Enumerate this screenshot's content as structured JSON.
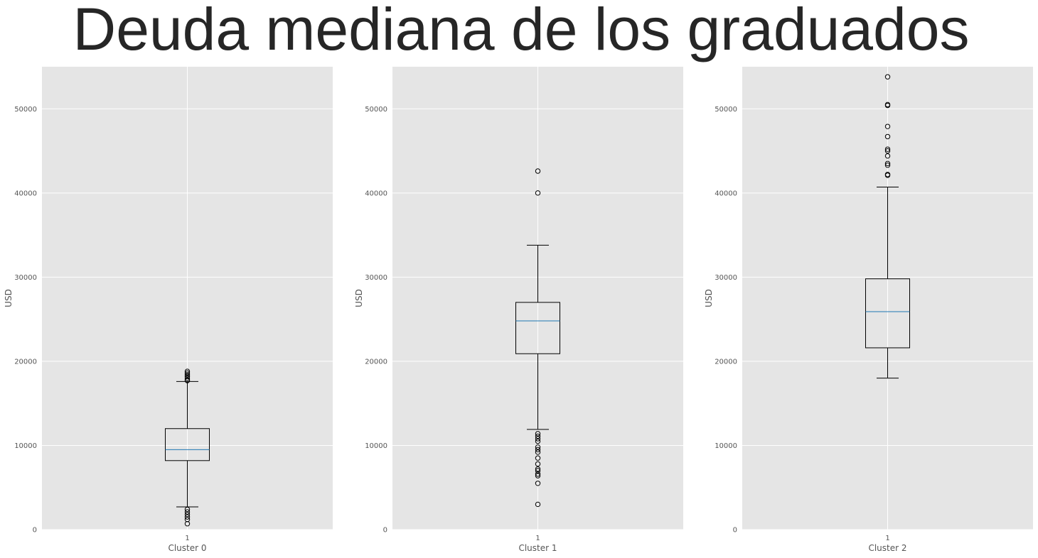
{
  "title": "Deuda mediana de los graduados",
  "colors": {
    "axes_bg": "#e5e5e5",
    "grid": "#ffffff",
    "box": "#000000",
    "median": "#1f77b4"
  },
  "chart_data": [
    {
      "type": "box",
      "xlabel": "Cluster 0",
      "ylabel": "USD",
      "ylim": [
        0,
        55000
      ],
      "yticks": [
        "0",
        "10000",
        "20000",
        "30000",
        "40000",
        "50000"
      ],
      "xticks": [
        "1"
      ],
      "box": {
        "whisker_low": 2700,
        "q1": 8200,
        "median": 9500,
        "q3": 12000,
        "whisker_high": 17600
      },
      "outliers": [
        700,
        1200,
        1500,
        1800,
        2100,
        2400,
        17700,
        17800,
        18000,
        18200,
        18400,
        18600,
        18800
      ]
    },
    {
      "type": "box",
      "xlabel": "Cluster 1",
      "ylabel": "USD",
      "ylim": [
        0,
        55000
      ],
      "yticks": [
        "0",
        "10000",
        "20000",
        "30000",
        "40000",
        "50000"
      ],
      "xticks": [
        "1"
      ],
      "box": {
        "whisker_low": 11900,
        "q1": 20900,
        "median": 24800,
        "q3": 27000,
        "whisker_high": 33800
      },
      "outliers": [
        3000,
        5500,
        6400,
        6600,
        7000,
        7200,
        7800,
        8500,
        9200,
        9500,
        9800,
        10500,
        10800,
        11100,
        11400,
        40000,
        42600
      ]
    },
    {
      "type": "box",
      "xlabel": "Cluster 2",
      "ylabel": "USD",
      "ylim": [
        0,
        55000
      ],
      "yticks": [
        "0",
        "10000",
        "20000",
        "30000",
        "40000",
        "50000"
      ],
      "xticks": [
        "1"
      ],
      "box": {
        "whisker_low": 18000,
        "q1": 21600,
        "median": 25900,
        "q3": 29800,
        "whisker_high": 40700
      },
      "outliers": [
        42100,
        42200,
        43300,
        43500,
        44400,
        45000,
        45200,
        46700,
        47900,
        50400,
        50500,
        53800
      ]
    }
  ]
}
